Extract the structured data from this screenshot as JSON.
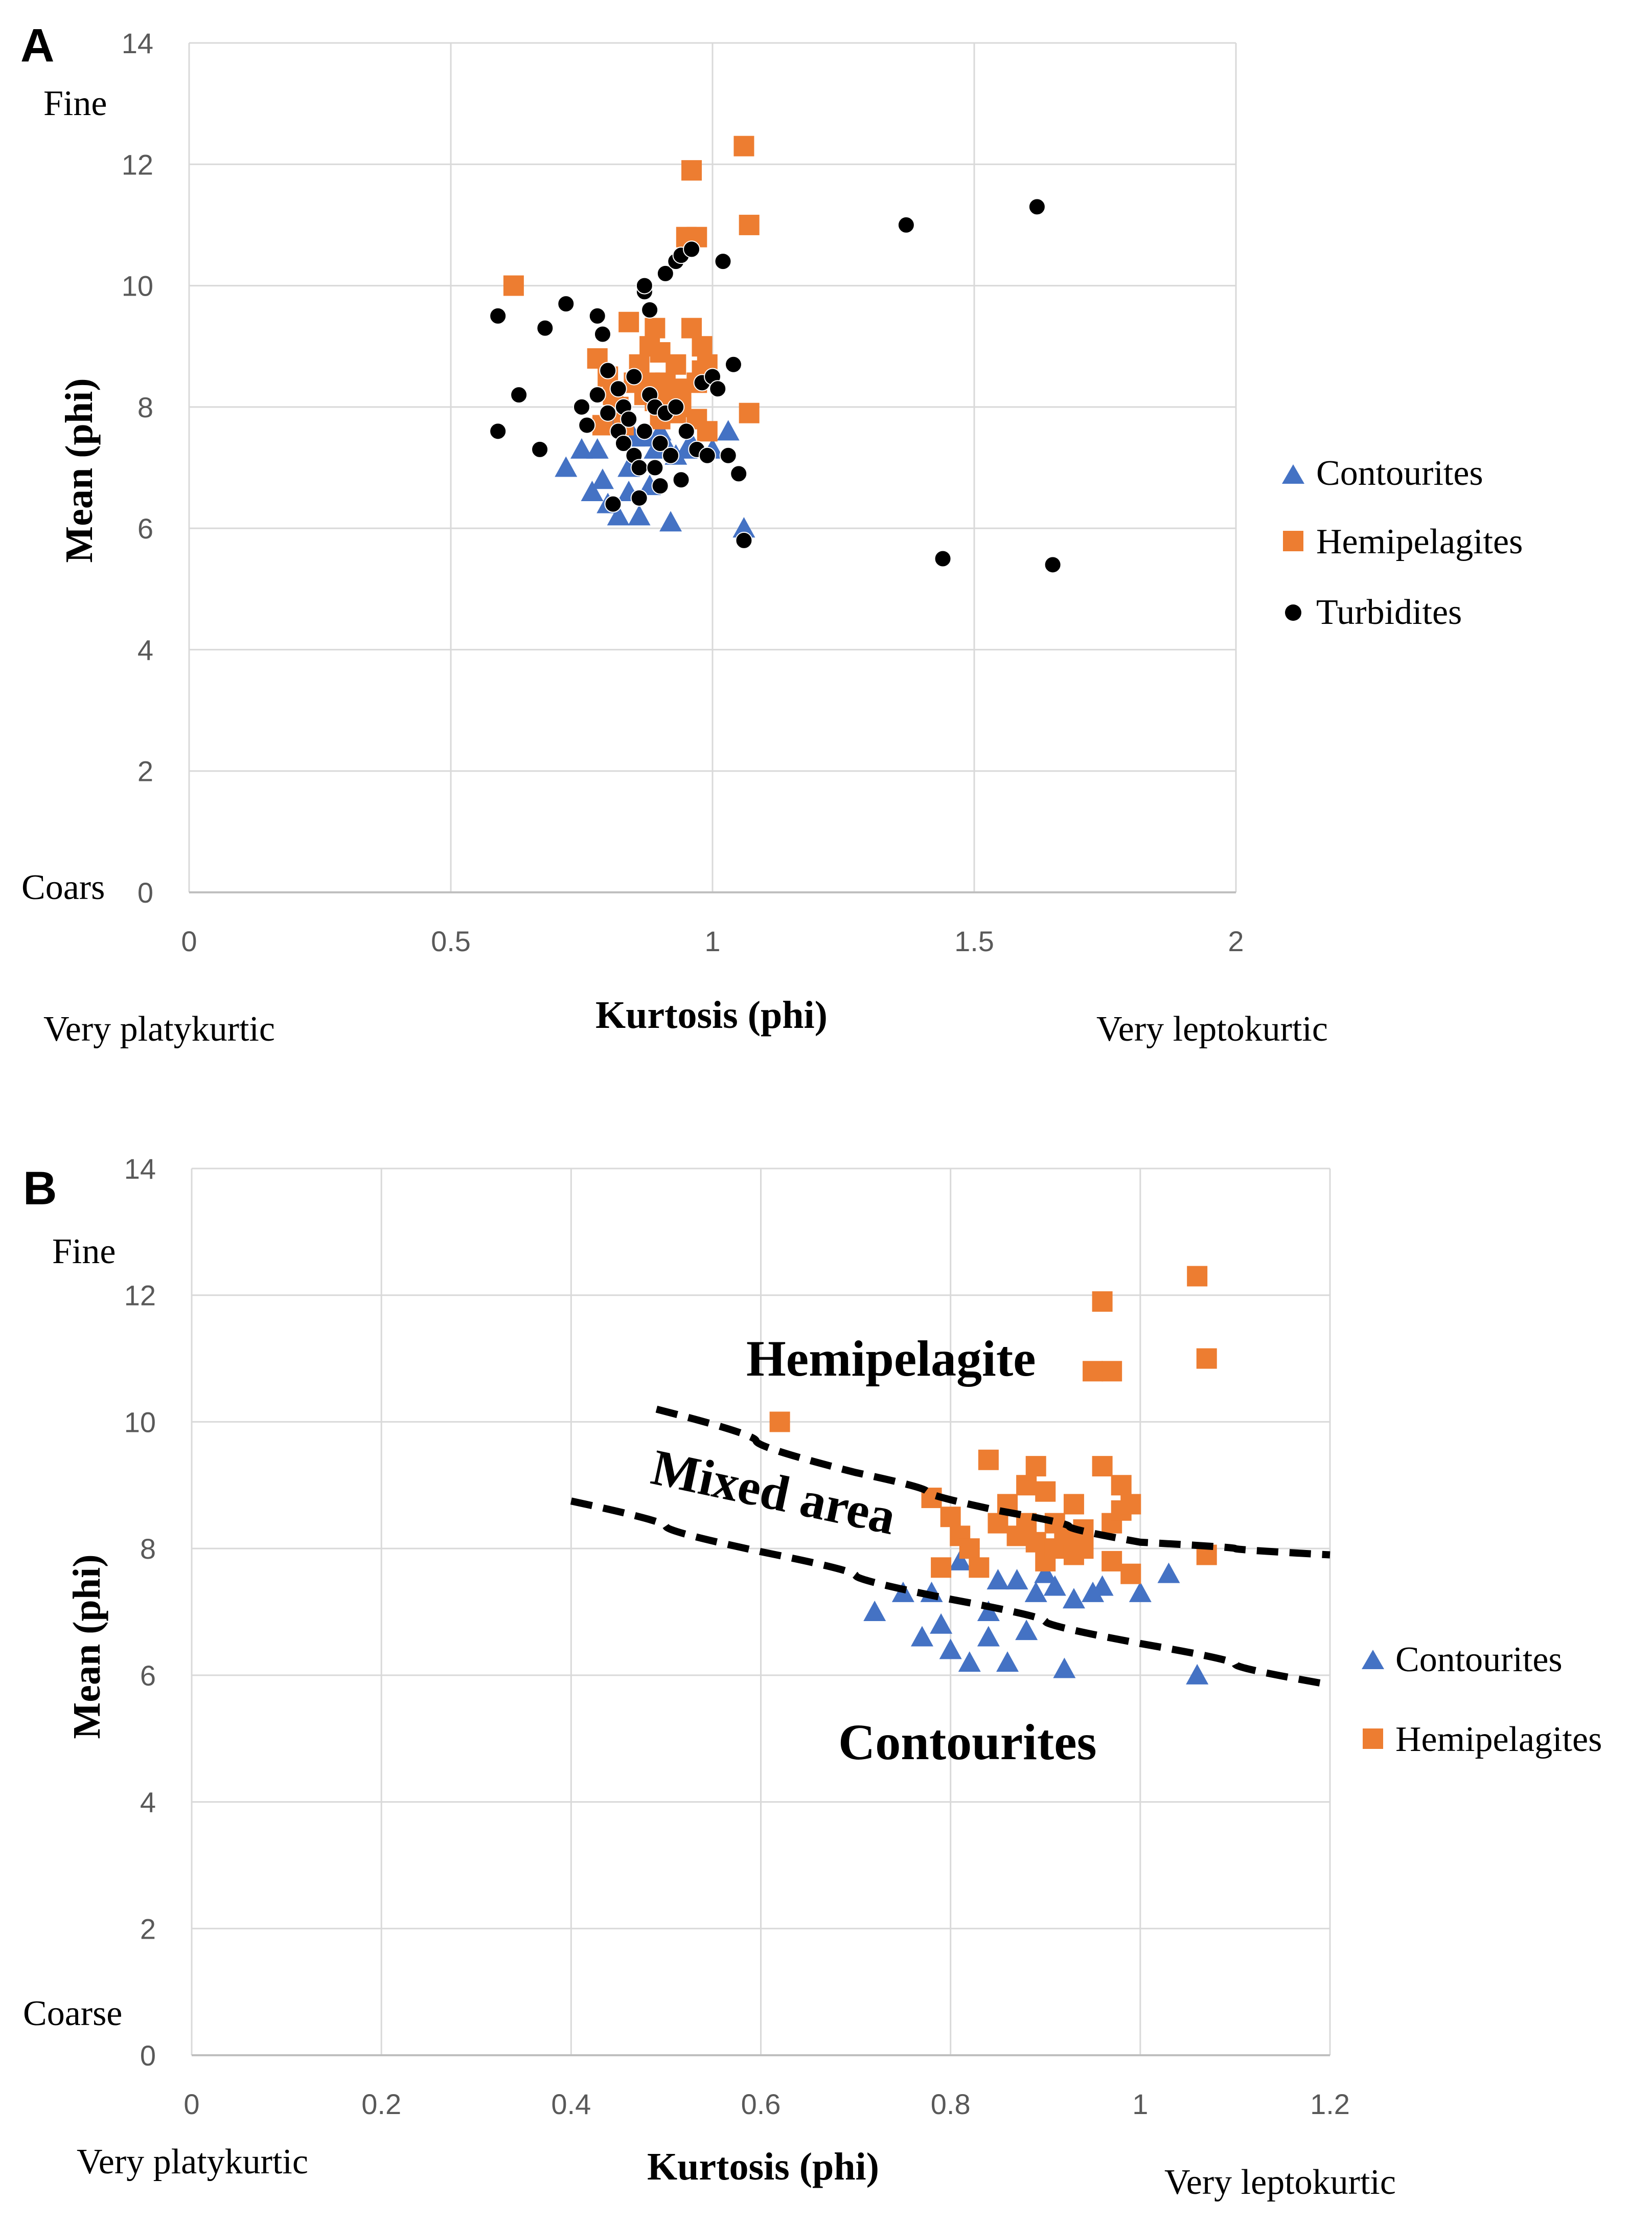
{
  "chart_data": [
    {
      "panel": "A",
      "type": "scatter",
      "xlabel": "Kurtosis (phi)",
      "ylabel": "Mean (phi)",
      "xlim": [
        0,
        2
      ],
      "ylim": [
        0,
        14
      ],
      "xticks": [
        "0",
        "0.5",
        "1",
        "1.5",
        "2"
      ],
      "yticks": [
        "0",
        "2",
        "4",
        "6",
        "8",
        "10",
        "12",
        "14"
      ],
      "grid": true,
      "legend_position": "right",
      "annotations": {
        "fine": "Fine",
        "coarse": "Coars",
        "platy": "Very platykurtic",
        "lepto": "Very leptokurtic"
      },
      "series": [
        {
          "name": "Contourites",
          "marker": "triangle",
          "color": "#4472C4",
          "points": [
            [
              0.72,
              7.0
            ],
            [
              0.75,
              7.3
            ],
            [
              0.77,
              6.6
            ],
            [
              0.78,
              7.3
            ],
            [
              0.79,
              6.8
            ],
            [
              0.8,
              6.4
            ],
            [
              0.81,
              7.8
            ],
            [
              0.82,
              6.2
            ],
            [
              0.84,
              7.0
            ],
            [
              0.84,
              6.6
            ],
            [
              0.85,
              7.5
            ],
            [
              0.86,
              6.2
            ],
            [
              0.87,
              7.5
            ],
            [
              0.88,
              6.7
            ],
            [
              0.89,
              7.3
            ],
            [
              0.9,
              7.6
            ],
            [
              0.91,
              7.4
            ],
            [
              0.92,
              6.1
            ],
            [
              0.93,
              7.2
            ],
            [
              0.95,
              7.3
            ],
            [
              0.96,
              7.4
            ],
            [
              1.0,
              7.3
            ],
            [
              1.03,
              7.6
            ],
            [
              1.06,
              6.0
            ]
          ]
        },
        {
          "name": "Hemipelagites",
          "marker": "square",
          "color": "#ED7D31",
          "points": [
            [
              0.62,
              10.0
            ],
            [
              0.78,
              8.8
            ],
            [
              0.79,
              7.7
            ],
            [
              0.8,
              8.5
            ],
            [
              0.81,
              8.2
            ],
            [
              0.82,
              8.0
            ],
            [
              0.83,
              7.7
            ],
            [
              0.84,
              9.4
            ],
            [
              0.85,
              8.4
            ],
            [
              0.86,
              8.7
            ],
            [
              0.87,
              8.2
            ],
            [
              0.88,
              9.0
            ],
            [
              0.88,
              8.4
            ],
            [
              0.89,
              9.3
            ],
            [
              0.89,
              8.1
            ],
            [
              0.9,
              8.9
            ],
            [
              0.9,
              7.8
            ],
            [
              0.91,
              8.4
            ],
            [
              0.91,
              8.0
            ],
            [
              0.92,
              8.2
            ],
            [
              0.93,
              7.9
            ],
            [
              0.93,
              8.7
            ],
            [
              0.94,
              8.0
            ],
            [
              0.94,
              8.3
            ],
            [
              0.95,
              10.8
            ],
            [
              0.96,
              11.9
            ],
            [
              0.96,
              9.3
            ],
            [
              0.97,
              10.8
            ],
            [
              0.97,
              8.4
            ],
            [
              0.97,
              7.8
            ],
            [
              0.98,
              9.0
            ],
            [
              0.98,
              8.6
            ],
            [
              0.99,
              8.7
            ],
            [
              0.99,
              7.6
            ],
            [
              1.06,
              12.3
            ],
            [
              1.07,
              11.0
            ],
            [
              1.07,
              7.9
            ]
          ]
        },
        {
          "name": "Turbidites",
          "marker": "circle",
          "color": "#000000",
          "points": [
            [
              0.59,
              9.5
            ],
            [
              0.59,
              7.6
            ],
            [
              0.63,
              8.2
            ],
            [
              0.67,
              7.3
            ],
            [
              0.68,
              9.3
            ],
            [
              0.72,
              9.7
            ],
            [
              0.75,
              8.0
            ],
            [
              0.76,
              7.7
            ],
            [
              0.78,
              8.2
            ],
            [
              0.78,
              9.5
            ],
            [
              0.79,
              9.2
            ],
            [
              0.8,
              8.6
            ],
            [
              0.8,
              7.9
            ],
            [
              0.81,
              6.4
            ],
            [
              0.82,
              8.3
            ],
            [
              0.82,
              7.6
            ],
            [
              0.83,
              8.0
            ],
            [
              0.83,
              7.4
            ],
            [
              0.84,
              7.8
            ],
            [
              0.85,
              8.5
            ],
            [
              0.85,
              7.2
            ],
            [
              0.86,
              7.0
            ],
            [
              0.86,
              6.5
            ],
            [
              0.87,
              9.9
            ],
            [
              0.87,
              10.0
            ],
            [
              0.87,
              7.6
            ],
            [
              0.88,
              9.6
            ],
            [
              0.88,
              8.2
            ],
            [
              0.89,
              7.0
            ],
            [
              0.89,
              8.0
            ],
            [
              0.9,
              6.7
            ],
            [
              0.9,
              7.4
            ],
            [
              0.91,
              10.2
            ],
            [
              0.91,
              7.9
            ],
            [
              0.92,
              7.2
            ],
            [
              0.93,
              10.4
            ],
            [
              0.93,
              8.0
            ],
            [
              0.94,
              10.5
            ],
            [
              0.94,
              6.8
            ],
            [
              0.95,
              7.6
            ],
            [
              0.96,
              10.6
            ],
            [
              0.97,
              7.3
            ],
            [
              0.98,
              8.4
            ],
            [
              0.99,
              7.2
            ],
            [
              1.0,
              8.5
            ],
            [
              1.01,
              8.3
            ],
            [
              1.02,
              10.4
            ],
            [
              1.03,
              7.2
            ],
            [
              1.04,
              8.7
            ],
            [
              1.05,
              6.9
            ],
            [
              1.06,
              5.8
            ],
            [
              1.37,
              11.0
            ],
            [
              1.44,
              5.5
            ],
            [
              1.62,
              11.3
            ],
            [
              1.65,
              5.4
            ]
          ]
        }
      ]
    },
    {
      "panel": "B",
      "type": "scatter",
      "xlabel": "Kurtosis (phi)",
      "ylabel": "Mean (phi)",
      "xlim": [
        0,
        1.2
      ],
      "ylim": [
        0,
        14
      ],
      "xticks": [
        "0",
        "0.2",
        "0.4",
        "0.6",
        "0.8",
        "1",
        "1.2"
      ],
      "yticks": [
        "0",
        "2",
        "4",
        "6",
        "8",
        "10",
        "12",
        "14"
      ],
      "grid": true,
      "legend_position": "right",
      "annotations": {
        "fine": "Fine",
        "coarse": "Coarse",
        "platy": "Very platykurtic",
        "lepto": "Very leptokurtic"
      },
      "regions": [
        "Hemipelagite",
        "Mixed area",
        "Contourites"
      ],
      "boundaries": [
        [
          [
            0.49,
            10.2
          ],
          [
            0.7,
            9.2
          ],
          [
            0.85,
            8.6
          ],
          [
            1.0,
            8.1
          ],
          [
            1.2,
            7.9
          ]
        ],
        [
          [
            0.4,
            8.75
          ],
          [
            0.6,
            7.95
          ],
          [
            0.8,
            7.2
          ],
          [
            1.0,
            6.5
          ],
          [
            1.2,
            5.85
          ]
        ]
      ],
      "series": [
        {
          "name": "Contourites",
          "marker": "triangle",
          "color": "#4472C4",
          "points": [
            [
              0.72,
              7.0
            ],
            [
              0.75,
              7.3
            ],
            [
              0.77,
              6.6
            ],
            [
              0.78,
              7.3
            ],
            [
              0.79,
              6.8
            ],
            [
              0.8,
              6.4
            ],
            [
              0.81,
              7.8
            ],
            [
              0.82,
              6.2
            ],
            [
              0.84,
              7.0
            ],
            [
              0.84,
              6.6
            ],
            [
              0.85,
              7.5
            ],
            [
              0.86,
              6.2
            ],
            [
              0.87,
              7.5
            ],
            [
              0.88,
              6.7
            ],
            [
              0.89,
              7.3
            ],
            [
              0.9,
              7.6
            ],
            [
              0.91,
              7.4
            ],
            [
              0.92,
              6.1
            ],
            [
              0.93,
              7.2
            ],
            [
              0.95,
              7.3
            ],
            [
              0.96,
              7.4
            ],
            [
              1.0,
              7.3
            ],
            [
              1.03,
              7.6
            ],
            [
              1.06,
              6.0
            ]
          ]
        },
        {
          "name": "Hemipelagites",
          "marker": "square",
          "color": "#ED7D31",
          "points": [
            [
              0.62,
              10.0
            ],
            [
              0.78,
              8.8
            ],
            [
              0.79,
              7.7
            ],
            [
              0.8,
              8.5
            ],
            [
              0.81,
              8.2
            ],
            [
              0.82,
              8.0
            ],
            [
              0.83,
              7.7
            ],
            [
              0.84,
              9.4
            ],
            [
              0.85,
              8.4
            ],
            [
              0.86,
              8.7
            ],
            [
              0.87,
              8.2
            ],
            [
              0.88,
              9.0
            ],
            [
              0.88,
              8.4
            ],
            [
              0.89,
              9.3
            ],
            [
              0.89,
              8.1
            ],
            [
              0.9,
              8.9
            ],
            [
              0.9,
              7.8
            ],
            [
              0.91,
              8.4
            ],
            [
              0.91,
              8.0
            ],
            [
              0.92,
              8.2
            ],
            [
              0.93,
              7.9
            ],
            [
              0.93,
              8.7
            ],
            [
              0.94,
              8.0
            ],
            [
              0.94,
              8.3
            ],
            [
              0.95,
              10.8
            ],
            [
              0.96,
              11.9
            ],
            [
              0.96,
              9.3
            ],
            [
              0.97,
              10.8
            ],
            [
              0.97,
              8.4
            ],
            [
              0.97,
              7.8
            ],
            [
              0.98,
              9.0
            ],
            [
              0.98,
              8.6
            ],
            [
              0.99,
              8.7
            ],
            [
              0.99,
              7.6
            ],
            [
              1.06,
              12.3
            ],
            [
              1.07,
              11.0
            ],
            [
              1.07,
              7.9
            ]
          ]
        }
      ]
    }
  ]
}
